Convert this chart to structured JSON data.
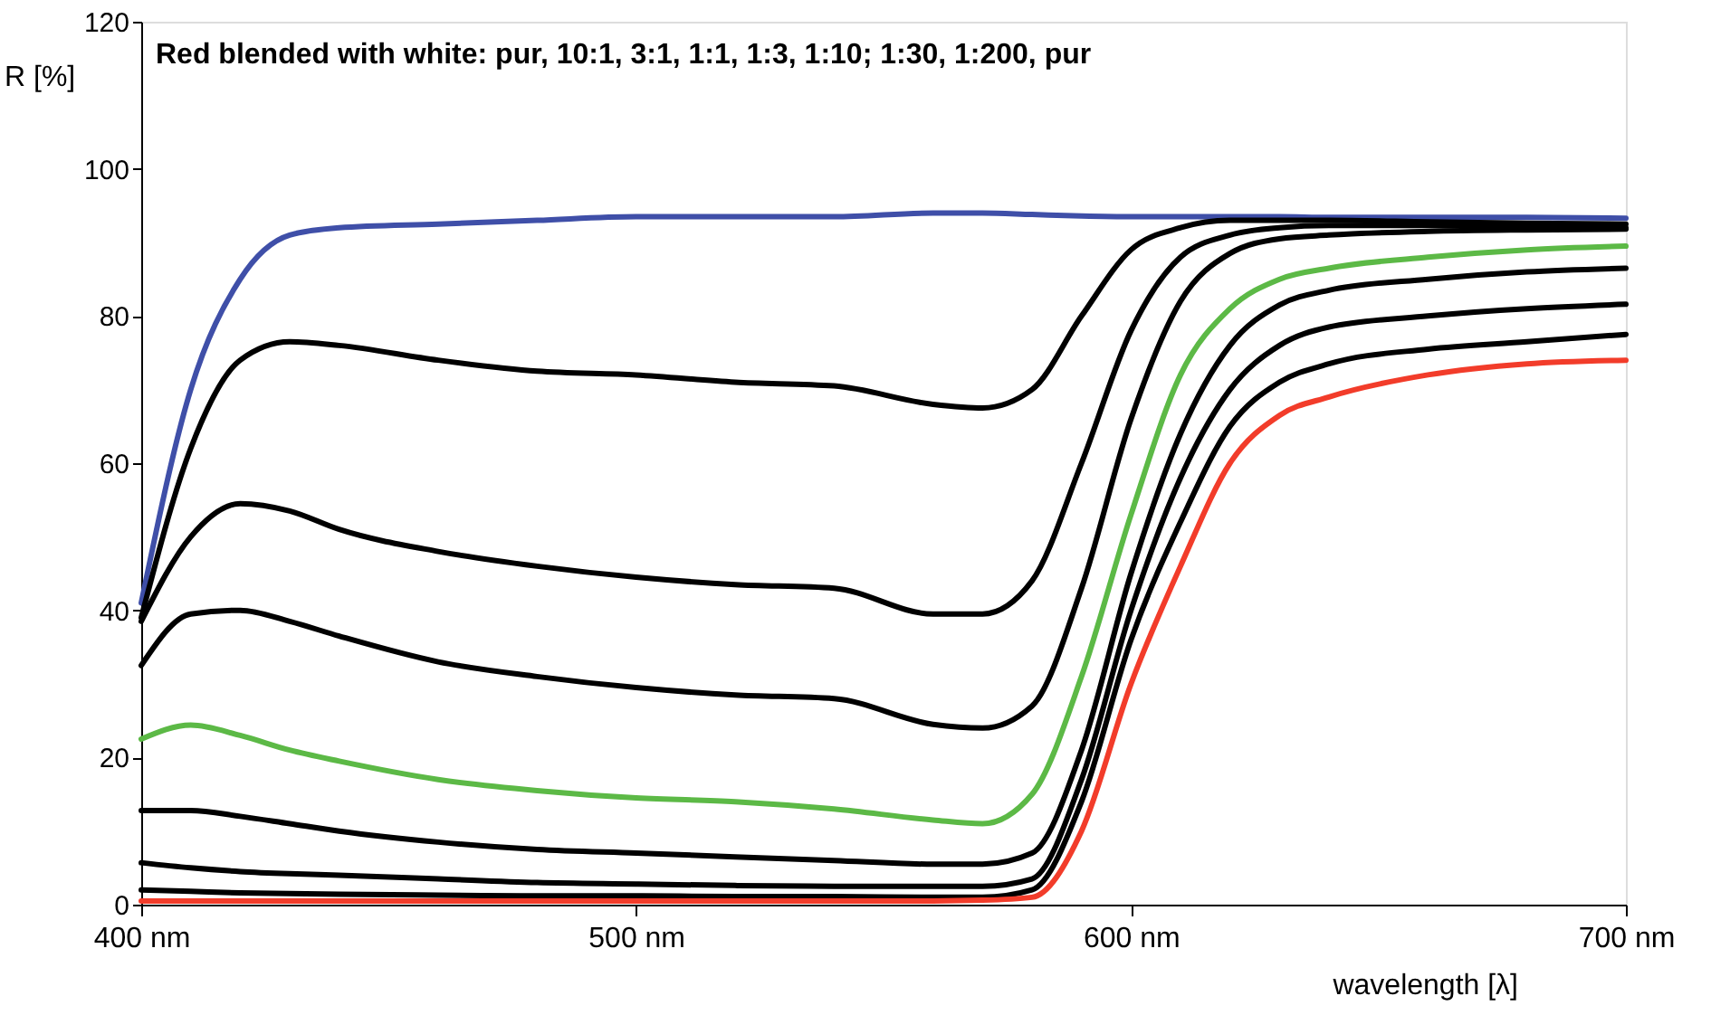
{
  "chart_data": {
    "type": "line",
    "title": "Red blended with white: pur, 10:1, 3:1, 1:1, 1:3, 1:10; 1:30, 1:200, pur",
    "xlabel": "wavelength [λ]",
    "ylabel": "R [%]",
    "x": [
      400,
      410,
      420,
      430,
      440,
      460,
      480,
      500,
      520,
      540,
      560,
      570,
      580,
      590,
      600,
      610,
      620,
      630,
      640,
      660,
      680,
      700
    ],
    "series": [
      {
        "color": "#3f4fa8",
        "values": [
          41,
          70,
          85,
          91,
          92,
          92.5,
          93,
          93.5,
          93.5,
          93.5,
          94,
          94,
          93.8,
          93.6,
          93.5,
          93.5,
          93.5,
          93.5,
          93.4,
          93.4,
          93.4,
          93.3
        ]
      },
      {
        "color": "#000000",
        "values": [
          39,
          62,
          74,
          76.5,
          76,
          74,
          72.5,
          72,
          71,
          70.5,
          68,
          67.5,
          70,
          80,
          89,
          92,
          93,
          93,
          93,
          92.8,
          92.6,
          92.5
        ]
      },
      {
        "color": "#000000",
        "values": [
          38.5,
          50,
          54.5,
          53.5,
          51,
          48,
          46,
          44.5,
          43.5,
          43,
          39.5,
          39.5,
          44,
          60,
          78,
          88,
          91,
          92,
          92.3,
          92.3,
          92.2,
          92
        ]
      },
      {
        "color": "#000000",
        "values": [
          32.5,
          39.5,
          40,
          38.5,
          36.5,
          33,
          31,
          29.5,
          28.5,
          28,
          24.5,
          24,
          27,
          43,
          66,
          82,
          88.5,
          90.5,
          91,
          91.5,
          91.7,
          91.8
        ]
      },
      {
        "color": "#5cb946",
        "values": [
          22.5,
          24.4,
          23,
          21,
          19.5,
          17,
          15.5,
          14.5,
          14,
          13,
          11.5,
          11,
          15,
          31,
          53,
          72,
          81,
          85,
          86.5,
          88,
          89,
          89.5
        ]
      },
      {
        "color": "#000000",
        "values": [
          12.8,
          12.8,
          12,
          11,
          10,
          8.5,
          7.5,
          7,
          6.5,
          6,
          5.5,
          5.5,
          7,
          21,
          45,
          64,
          76,
          81.5,
          83.5,
          85,
          86,
          86.5
        ]
      },
      {
        "color": "#000000",
        "values": [
          5.7,
          5,
          4.5,
          4.2,
          4,
          3.5,
          3,
          2.8,
          2.6,
          2.5,
          2.5,
          2.5,
          3.5,
          17,
          40,
          58,
          70,
          76,
          78.5,
          80,
          81,
          81.6
        ]
      },
      {
        "color": "#000000",
        "values": [
          2,
          1.8,
          1.6,
          1.5,
          1.4,
          1.3,
          1.2,
          1.2,
          1.1,
          1.1,
          1,
          1,
          2,
          14,
          36,
          52,
          65,
          71,
          73.5,
          75.5,
          76.5,
          77.5
        ]
      },
      {
        "color": "#f23c2a",
        "values": [
          0.5,
          0.5,
          0.5,
          0.5,
          0.5,
          0.5,
          0.5,
          0.5,
          0.5,
          0.5,
          0.5,
          0.6,
          1,
          10,
          30,
          46,
          60,
          66.5,
          69,
          72,
          73.5,
          74
        ]
      }
    ],
    "xlim": [
      400,
      700
    ],
    "xticks": [
      {
        "value": 400,
        "label": "400 nm"
      },
      {
        "value": 500,
        "label": "500 nm"
      },
      {
        "value": 600,
        "label": "600 nm"
      },
      {
        "value": 700,
        "label": "700 nm"
      }
    ],
    "ylim": [
      0,
      120
    ],
    "yticks": [
      0,
      20,
      40,
      60,
      80,
      100,
      120
    ],
    "grid": false,
    "marker": "none",
    "line_style": "solid"
  }
}
